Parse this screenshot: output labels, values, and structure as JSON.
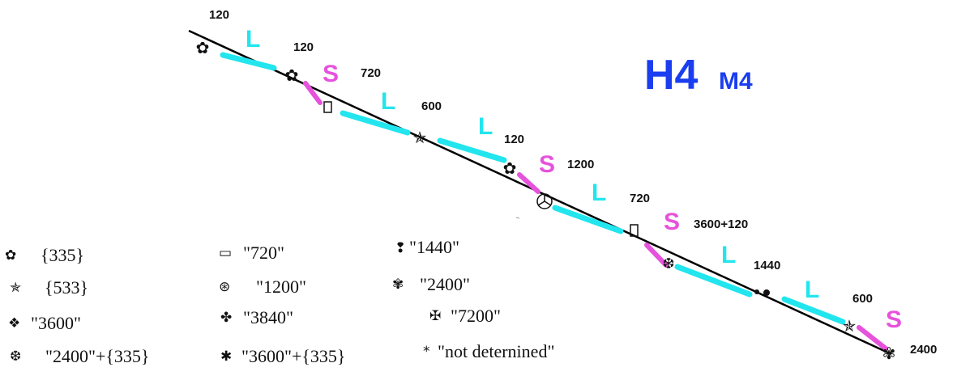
{
  "title": {
    "main": "H4",
    "sub": "M4"
  },
  "colors": {
    "long": "#22e5ee",
    "short": "#e652dc",
    "title": "#1a3df0",
    "line": "#000000"
  },
  "segments": [
    {
      "letter": "L",
      "type": "long"
    },
    {
      "letter": "S",
      "type": "short"
    },
    {
      "letter": "L",
      "type": "long"
    },
    {
      "letter": "L",
      "type": "long"
    },
    {
      "letter": "S",
      "type": "short"
    },
    {
      "letter": "L",
      "type": "long"
    },
    {
      "letter": "S",
      "type": "short"
    },
    {
      "letter": "L",
      "type": "long"
    },
    {
      "letter": "L",
      "type": "long"
    },
    {
      "letter": "S",
      "type": "short"
    }
  ],
  "labels": [
    "120",
    "120",
    "720",
    "600",
    "120",
    "1200",
    "720",
    "3600+120",
    "1440",
    "600",
    "2400"
  ],
  "legend": [
    {
      "icon": "flower-icon",
      "glyph": "✿",
      "text": "{335}"
    },
    {
      "icon": "star-icon",
      "glyph": "✯",
      "text": "{533}"
    },
    {
      "icon": "diamond-cross-icon",
      "glyph": "❖",
      "text": "\"3600\""
    },
    {
      "icon": "snowflake-icon",
      "glyph": "❆",
      "text": "\"2400\"+{335}"
    },
    {
      "icon": "framed-box-icon",
      "glyph": "▭",
      "text": "\"720\""
    },
    {
      "icon": "circled-y-icon",
      "glyph": "⊛",
      "text": "\"1200\""
    },
    {
      "icon": "four-lobe-icon",
      "glyph": "✤",
      "text": "\"3840\""
    },
    {
      "icon": "asterisk-icon",
      "glyph": "✱",
      "text": "\"3600\"+{335}"
    },
    {
      "icon": "exclamation-icon",
      "glyph": "❢",
      "text": "\"1440\""
    },
    {
      "icon": "sparkle-icon",
      "glyph": "✾",
      "text": "\"2400\""
    },
    {
      "icon": "maltese-cross-icon",
      "glyph": "✠",
      "text": "\"7200\""
    },
    {
      "icon": "small-asterisk-icon",
      "glyph": "*",
      "text": "\"not deternined\""
    }
  ]
}
